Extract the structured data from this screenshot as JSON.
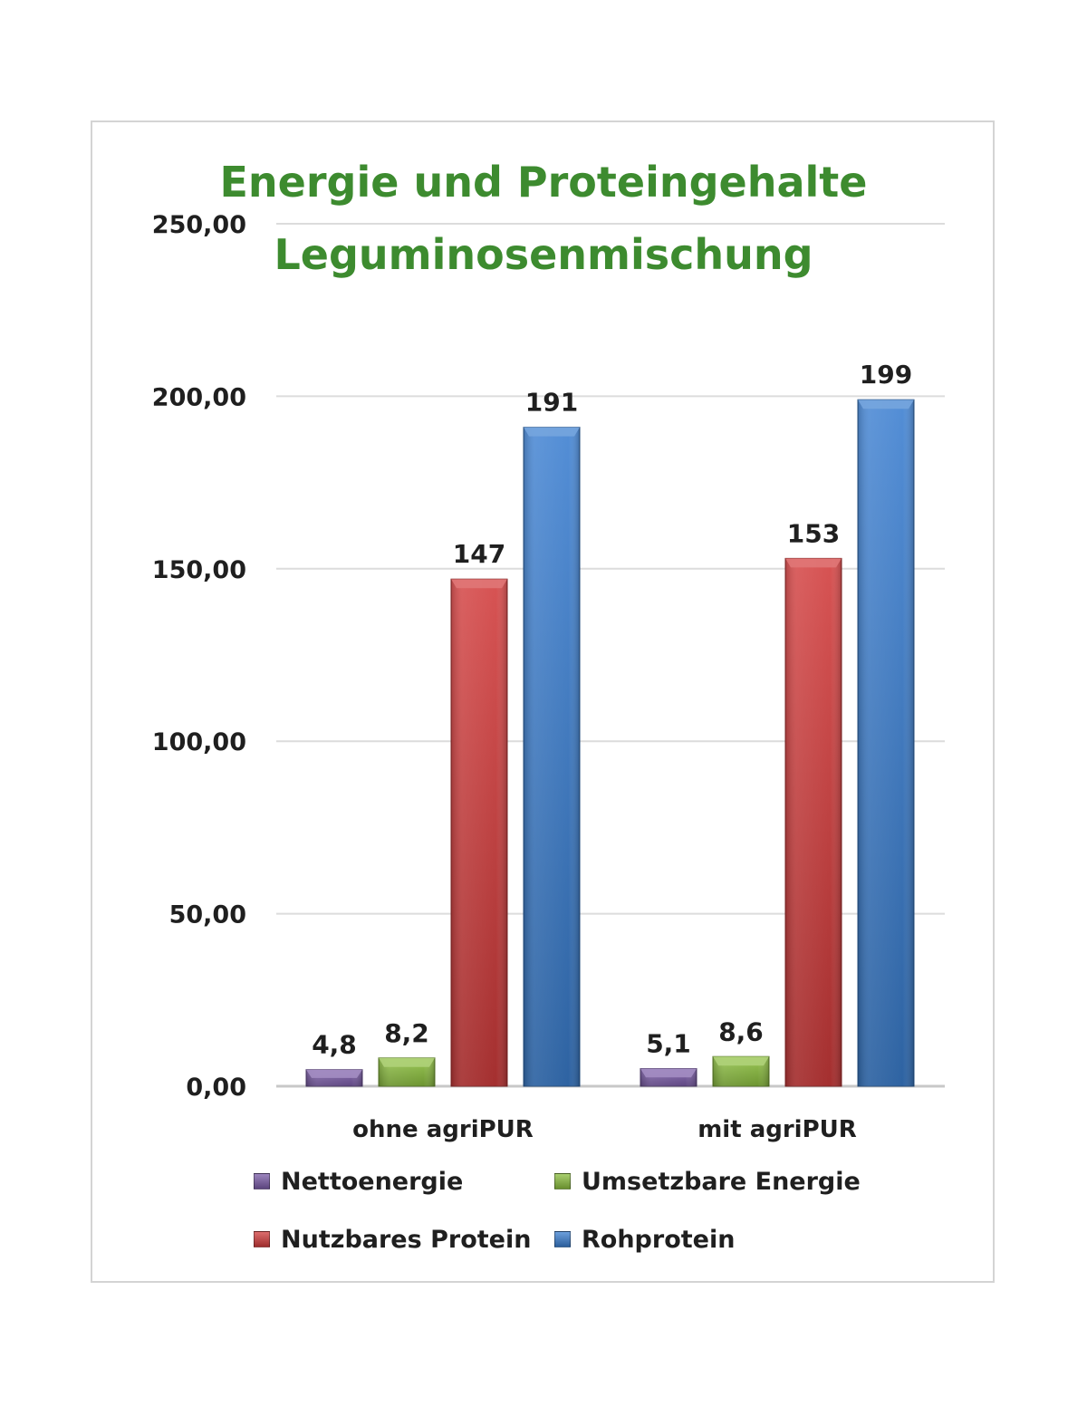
{
  "chart_data": {
    "type": "bar",
    "title": "Energie und Proteingehalte Leguminosenmischung",
    "title_lines": [
      "Energie und Proteingehalte",
      "Leguminosenmischung"
    ],
    "title_color": "#3d8b2f",
    "categories": [
      "ohne agriPUR",
      "mit agriPUR"
    ],
    "series": [
      {
        "name": "Nettoenergie",
        "values": [
          4.8,
          5.1
        ],
        "labels": [
          "4,8",
          "5,1"
        ],
        "color": "#7b5ca8"
      },
      {
        "name": "Umsetzbare Energie",
        "values": [
          8.2,
          8.6
        ],
        "labels": [
          "8,2",
          "8,6"
        ],
        "color": "#8cbf3f"
      },
      {
        "name": "Nutzbares Protein",
        "values": [
          147,
          153
        ],
        "labels": [
          "147",
          "153"
        ],
        "color": "#d23c3c"
      },
      {
        "name": "Rohprotein",
        "values": [
          191,
          199
        ],
        "labels": [
          "191",
          "199"
        ],
        "color": "#3b7fd0"
      }
    ],
    "ylim": [
      0,
      250
    ],
    "yticks": [
      0,
      50,
      100,
      150,
      200,
      250
    ],
    "ytick_labels": [
      "0,00",
      "50,00",
      "100,00",
      "150,00",
      "200,00",
      "250,00"
    ],
    "xlabel": "",
    "ylabel": "",
    "grid": true,
    "legend_position": "bottom"
  }
}
